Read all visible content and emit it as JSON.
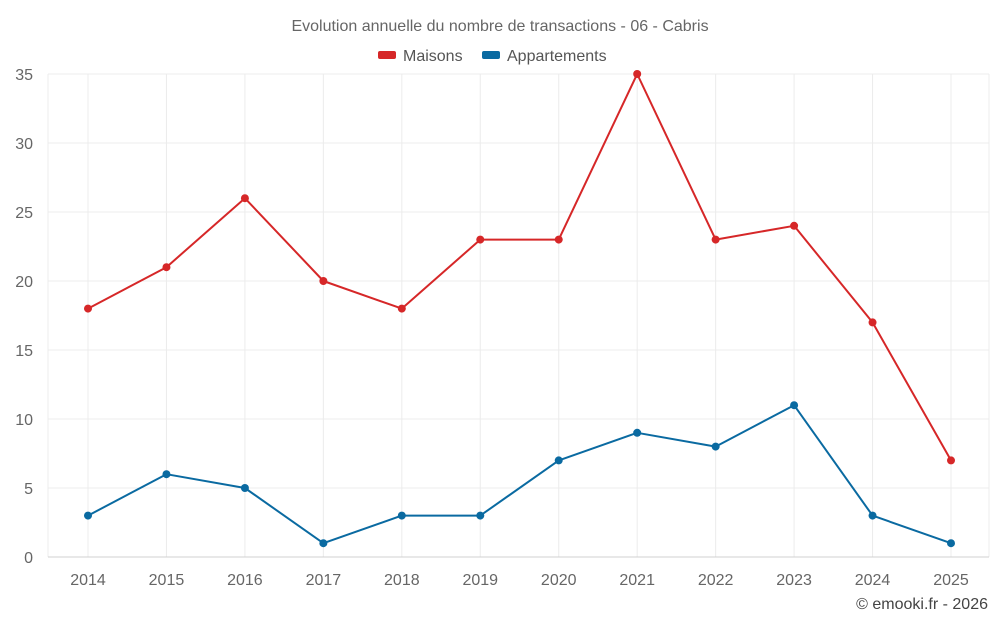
{
  "chart_data": {
    "type": "line",
    "title": "Evolution annuelle du nombre de transactions - 06 - Cabris",
    "categories": [
      "2014",
      "2015",
      "2016",
      "2017",
      "2018",
      "2019",
      "2020",
      "2021",
      "2022",
      "2023",
      "2024",
      "2025"
    ],
    "series": [
      {
        "name": "Maisons",
        "color": "#d62728",
        "values": [
          18,
          21,
          26,
          20,
          18,
          23,
          23,
          35,
          23,
          24,
          17,
          7
        ]
      },
      {
        "name": "Appartements",
        "color": "#0a6aa1",
        "values": [
          3,
          6,
          5,
          1,
          3,
          3,
          7,
          9,
          8,
          11,
          3,
          1
        ]
      }
    ],
    "ylim": [
      0,
      35
    ],
    "yticks": [
      0,
      5,
      10,
      15,
      20,
      25,
      30,
      35
    ],
    "xlabel": "",
    "ylabel": "",
    "grid": true,
    "legend_position": "top-center"
  },
  "credit": "© emooki.fr - 2026"
}
